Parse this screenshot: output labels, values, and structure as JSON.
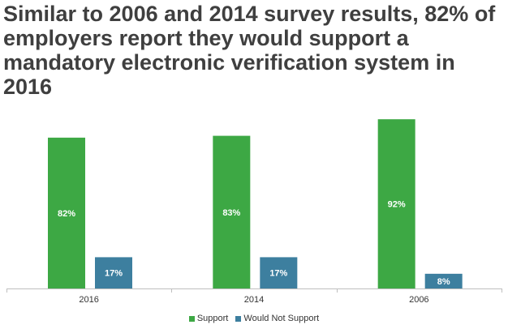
{
  "title": "Similar to 2006 and 2014 survey results, 82% of employers report they would support a mandatory electronic verification system in 2016",
  "legend": [
    {
      "label": "Support",
      "color": "#3da844"
    },
    {
      "label": "Would Not Support",
      "color": "#3d7f9f"
    }
  ],
  "chart_data": {
    "type": "bar",
    "title": "Similar to 2006 and 2014 survey results, 82% of employers report they would support a mandatory electronic verification system in 2016",
    "categories": [
      "2016",
      "2014",
      "2006"
    ],
    "series": [
      {
        "name": "Support",
        "values": [
          82,
          83,
          92
        ],
        "labels": [
          "82%",
          "83%",
          "92%"
        ],
        "color": "#3da844"
      },
      {
        "name": "Would Not Support",
        "values": [
          17,
          17,
          8
        ],
        "labels": [
          "17%",
          "17%",
          "8%"
        ],
        "color": "#3d7f9f"
      }
    ],
    "ylim": [
      0,
      100
    ],
    "grid": false,
    "legend_position": "bottom",
    "xlabel": "",
    "ylabel": ""
  }
}
